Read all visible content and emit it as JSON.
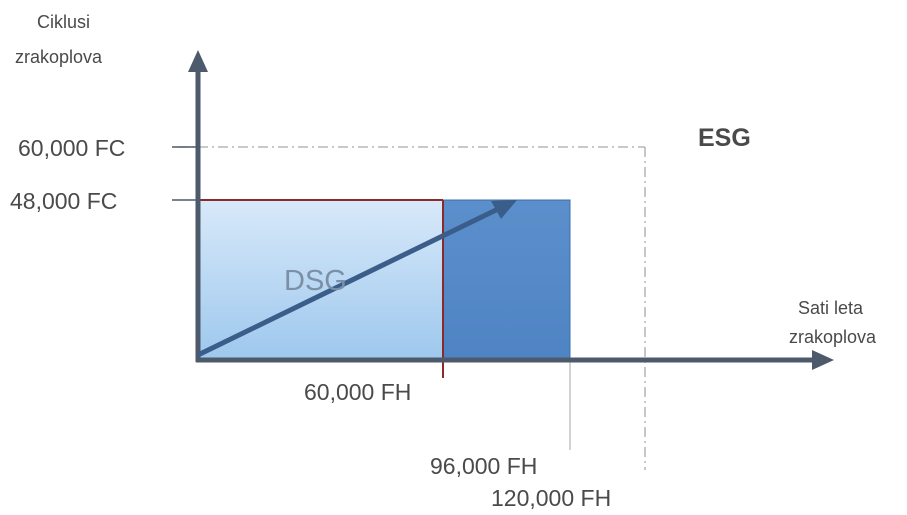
{
  "y_axis": {
    "title_line1": "Ciklusi",
    "title_line2": "zrakoplova"
  },
  "x_axis": {
    "title_line1": "Sati leta",
    "title_line2": "zrakoplova"
  },
  "y_ticks": {
    "fc_60000": "60,000 FC",
    "fc_48000": "48,000 FC"
  },
  "x_ticks": {
    "fh_60000": "60,000 FH",
    "fh_96000": "96,000 FH",
    "fh_120000": "120,000 FH"
  },
  "regions": {
    "esg": "ESG",
    "dsg": "DSG"
  },
  "colors": {
    "axis": "#4d5a6b",
    "dsg_fill_top": "#d8e9f9",
    "dsg_fill_bottom": "#9ec8ee",
    "dsg_border": "#8b2a2a",
    "esg_fill": "#5f93cf",
    "arrow": "#3b5d8a"
  }
}
